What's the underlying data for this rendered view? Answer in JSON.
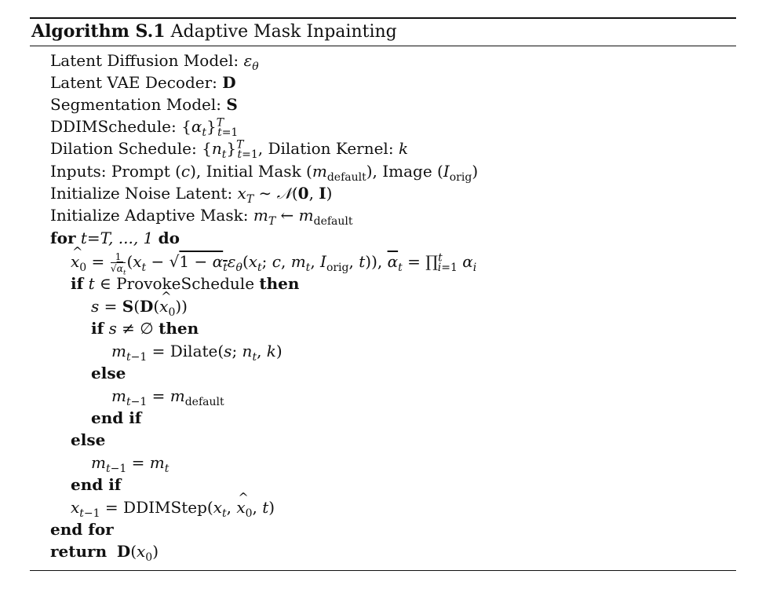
{
  "algorithm": {
    "label": "Algorithm S.1",
    "name": "Adaptive Mask Inpainting"
  },
  "lines": {
    "l1": "Latent Diffusion Model: ",
    "l2": "Latent VAE Decoder: ",
    "l3": "Segmentation Model: ",
    "l4": "DDIMSchedule: ",
    "l5a": "Dilation Schedule: ",
    "l5b": ", Dilation Kernel: ",
    "l6a": "Inputs: Prompt (",
    "l6b": "), Initial Mask (",
    "l6c": "), Image (",
    "l7": "Initialize Noise Latent: ",
    "l8": "Initialize Adaptive Mask: ",
    "kw_for": "for",
    "for_range": "t=T, ..., 1",
    "kw_do": "do",
    "kw_if": "if",
    "provoke": "ProvokeSchedule",
    "kw_then": "then",
    "dilate": "Dilate",
    "kw_else": "else",
    "kw_endif": "end if",
    "ddimstep": "DDIMStep",
    "kw_endfor": "end for",
    "kw_return": "return"
  }
}
